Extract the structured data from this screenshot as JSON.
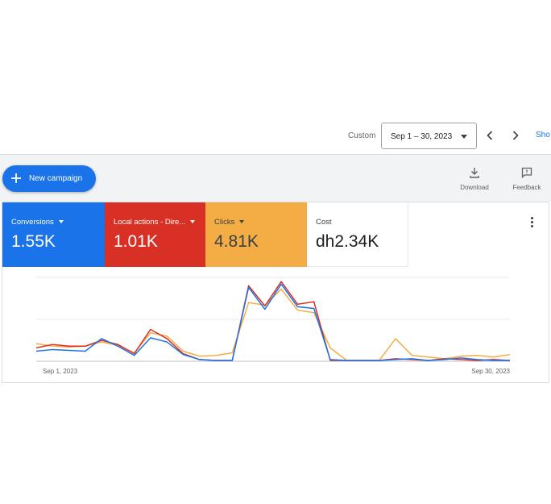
{
  "toolbar": {
    "custom_label": "Custom",
    "date_range": "Sep 1 – 30, 2023",
    "show_link": "Sho"
  },
  "panel": {
    "new_campaign_label": "New campaign",
    "download_label": "Download",
    "feedback_label": "Feedback"
  },
  "metrics": [
    {
      "label": "Conversions",
      "value": "1.55K",
      "color": "#1a73e8"
    },
    {
      "label": "Local actions - Dire...",
      "value": "1.01K",
      "color": "#d93025"
    },
    {
      "label": "Clicks",
      "value": "4.81K",
      "color": "#f4ac45"
    },
    {
      "label": "Cost",
      "value": "dh2.34K",
      "color": "#ffffff"
    }
  ],
  "chart_data": {
    "type": "line",
    "x": [
      "Sep 1",
      "Sep 2",
      "Sep 3",
      "Sep 4",
      "Sep 5",
      "Sep 6",
      "Sep 7",
      "Sep 8",
      "Sep 9",
      "Sep 10",
      "Sep 11",
      "Sep 12",
      "Sep 13",
      "Sep 14",
      "Sep 15",
      "Sep 16",
      "Sep 17",
      "Sep 18",
      "Sep 19",
      "Sep 20",
      "Sep 21",
      "Sep 22",
      "Sep 23",
      "Sep 24",
      "Sep 25",
      "Sep 26",
      "Sep 27",
      "Sep 28",
      "Sep 29",
      "Sep 30"
    ],
    "x_tick_labels": [
      "Sep 1, 2023",
      "Sep 30, 2023"
    ],
    "ylim": [
      0,
      100
    ],
    "grid": true,
    "series": [
      {
        "color": "#1a73e8",
        "values": [
          12,
          14,
          13,
          12,
          27,
          18,
          7,
          28,
          23,
          8,
          2,
          1,
          1,
          88,
          62,
          92,
          65,
          63,
          2,
          1,
          1,
          1,
          2,
          3,
          1,
          2,
          4,
          2,
          1,
          1
        ]
      },
      {
        "color": "#d93025",
        "values": [
          16,
          20,
          18,
          18,
          25,
          20,
          9,
          38,
          27,
          9,
          2,
          1,
          1,
          90,
          66,
          95,
          68,
          71,
          1,
          1,
          1,
          1,
          3,
          2,
          1,
          3,
          2,
          1,
          2,
          1
        ]
      },
      {
        "color": "#f4ac45",
        "values": [
          21,
          18,
          17,
          18,
          23,
          19,
          10,
          34,
          30,
          12,
          6,
          7,
          10,
          70,
          67,
          86,
          61,
          58,
          16,
          1,
          1,
          1,
          27,
          7,
          5,
          3,
          6,
          7,
          5,
          8
        ]
      }
    ]
  }
}
